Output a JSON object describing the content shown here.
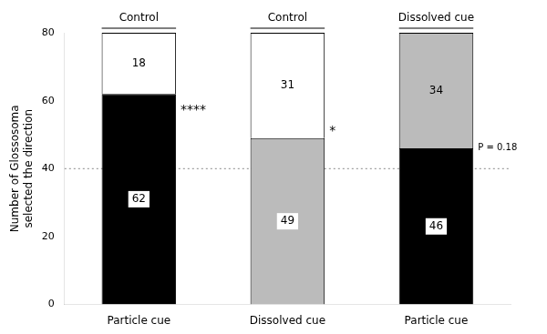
{
  "chart_data": {
    "type": "bar",
    "stacked": true,
    "categories": [
      "Particle cue",
      "Dissolved cue",
      "Particle cue"
    ],
    "series": [
      {
        "colors": [
          "black",
          "#bbbbbb",
          "black"
        ],
        "values": [
          62,
          49,
          46
        ]
      },
      {
        "colors": [
          "white",
          "white",
          "#bbbbbb"
        ],
        "values": [
          18,
          31,
          34
        ]
      }
    ],
    "ylabel": "Number of Glossosoma\nselected the direction",
    "ylim": [
      0,
      80
    ],
    "yticks": [
      0,
      20,
      40,
      60,
      80
    ],
    "grid": false,
    "data_labels": true,
    "headers": [
      "Control",
      "Control",
      "Dissolved cue"
    ],
    "annotations": [
      {
        "text": "****",
        "y": 57
      },
      {
        "text": "*",
        "y": 51
      },
      {
        "text": "P = 0.18",
        "y": 46
      }
    ],
    "reference_line": 40
  }
}
